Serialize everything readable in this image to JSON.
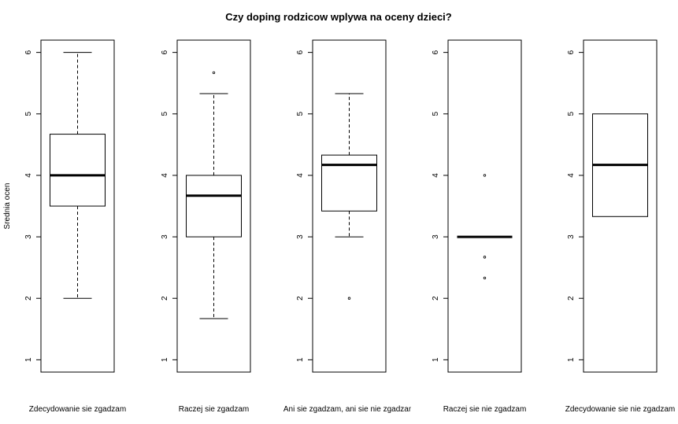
{
  "chart_data": {
    "type": "boxplot",
    "title": "Czy doping rodzicow wplywa na oceny dzieci?",
    "ylabel": "Srednia ocen",
    "ylim": [
      0.8,
      6.2
    ],
    "yticks": [
      "1",
      "2",
      "3",
      "4",
      "5",
      "6"
    ],
    "panels": [
      {
        "label": "Zdecydowanie sie zgadzam",
        "whisker_low": 2.0,
        "q1": 3.5,
        "median": 4.0,
        "q3": 4.67,
        "whisker_high": 6.0,
        "outliers": []
      },
      {
        "label": "Raczej sie zgadzam",
        "whisker_low": 1.67,
        "q1": 3.0,
        "median": 3.67,
        "q3": 4.0,
        "whisker_high": 5.33,
        "outliers": [
          5.67
        ]
      },
      {
        "label": "Ani sie zgadzam, ani sie nie zgadzam",
        "whisker_low": 3.0,
        "q1": 3.42,
        "median": 4.17,
        "q3": 4.33,
        "whisker_high": 5.33,
        "outliers": [
          2.0
        ]
      },
      {
        "label": "Raczej sie nie zgadzam",
        "whisker_low": 3.0,
        "q1": 3.0,
        "median": 3.0,
        "q3": 3.0,
        "whisker_high": 3.0,
        "outliers": [
          4.0,
          2.67,
          2.33
        ]
      },
      {
        "label": "Zdecydowanie sie nie zgadzam",
        "whisker_low": 3.33,
        "q1": 3.33,
        "median": 4.17,
        "q3": 5.0,
        "whisker_high": 5.0,
        "outliers": []
      }
    ]
  }
}
